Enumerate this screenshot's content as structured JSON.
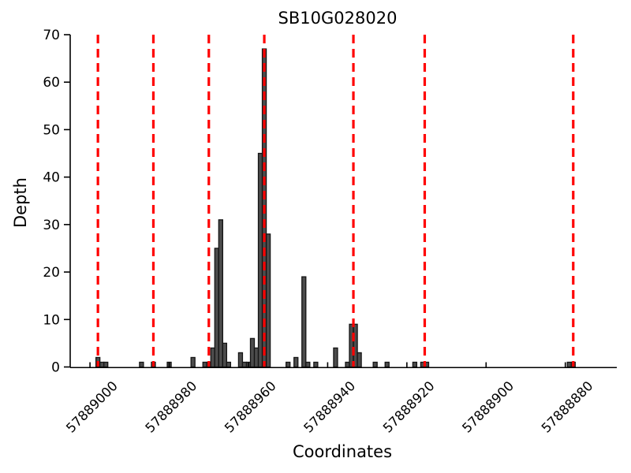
{
  "chart_data": {
    "type": "bar",
    "title": "SB10G028020",
    "xlabel": "Coordinates",
    "ylabel": "Depth",
    "ylim": [
      0,
      70
    ],
    "y_ticks": [
      0,
      10,
      20,
      30,
      40,
      50,
      60,
      70
    ],
    "x_ticks": [
      57889000,
      57888980,
      57888960,
      57888940,
      57888920,
      57888900,
      57888880
    ],
    "x_domain_left": 57889005,
    "x_domain_right": 57888867,
    "bar_width_units": 1,
    "grid": false,
    "legend": "none",
    "bars": [
      {
        "x": 57888998,
        "depth": 2
      },
      {
        "x": 57888997,
        "depth": 1
      },
      {
        "x": 57888996,
        "depth": 1
      },
      {
        "x": 57888987,
        "depth": 1
      },
      {
        "x": 57888984,
        "depth": 1
      },
      {
        "x": 57888980,
        "depth": 1
      },
      {
        "x": 57888974,
        "depth": 2
      },
      {
        "x": 57888971,
        "depth": 1
      },
      {
        "x": 57888970,
        "depth": 1
      },
      {
        "x": 57888969,
        "depth": 4
      },
      {
        "x": 57888968,
        "depth": 25
      },
      {
        "x": 57888967,
        "depth": 31
      },
      {
        "x": 57888966,
        "depth": 5
      },
      {
        "x": 57888965,
        "depth": 1
      },
      {
        "x": 57888962,
        "depth": 3
      },
      {
        "x": 57888961,
        "depth": 1
      },
      {
        "x": 57888960,
        "depth": 1
      },
      {
        "x": 57888959,
        "depth": 6
      },
      {
        "x": 57888958,
        "depth": 4
      },
      {
        "x": 57888957,
        "depth": 45
      },
      {
        "x": 57888956,
        "depth": 67
      },
      {
        "x": 57888955,
        "depth": 28
      },
      {
        "x": 57888950,
        "depth": 1
      },
      {
        "x": 57888948,
        "depth": 2
      },
      {
        "x": 57888946,
        "depth": 19
      },
      {
        "x": 57888945,
        "depth": 1
      },
      {
        "x": 57888943,
        "depth": 1
      },
      {
        "x": 57888938,
        "depth": 4
      },
      {
        "x": 57888935,
        "depth": 1
      },
      {
        "x": 57888934,
        "depth": 9
      },
      {
        "x": 57888933,
        "depth": 9
      },
      {
        "x": 57888932,
        "depth": 3
      },
      {
        "x": 57888928,
        "depth": 1
      },
      {
        "x": 57888925,
        "depth": 1
      },
      {
        "x": 57888918,
        "depth": 1
      },
      {
        "x": 57888916,
        "depth": 1
      },
      {
        "x": 57888915,
        "depth": 1
      },
      {
        "x": 57888879,
        "depth": 1
      },
      {
        "x": 57888878,
        "depth": 1
      }
    ],
    "red_dashed_lines_x": [
      57888998,
      57888984,
      57888970,
      57888956,
      57888933.5,
      57888915.5,
      57888878
    ],
    "colors": {
      "background": "#ffffff",
      "bar_fill": "#4c4c4c",
      "bar_edge": "#141414",
      "marker_line": "#ff0000",
      "axis": "#000000",
      "text": "#000000"
    }
  }
}
